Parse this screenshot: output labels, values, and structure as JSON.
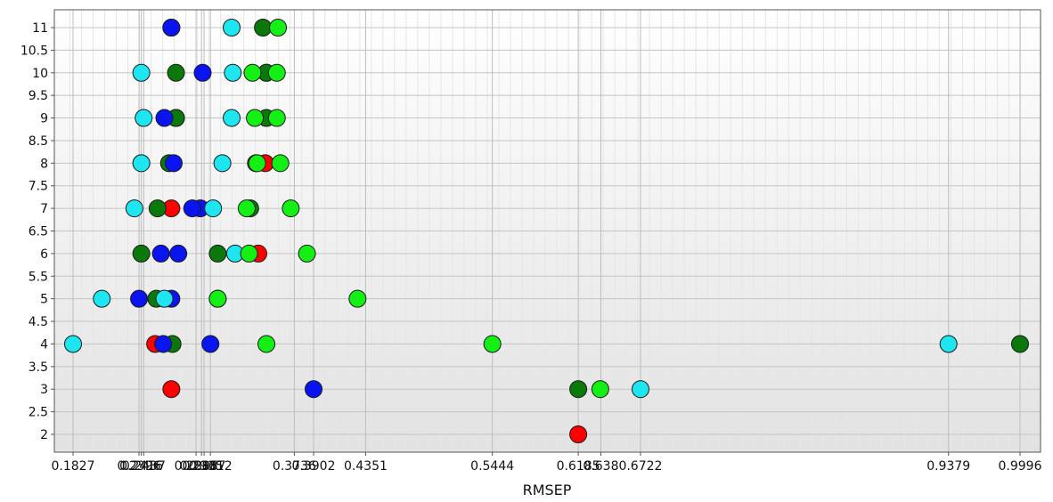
{
  "chart_data": {
    "type": "scatter",
    "title": "",
    "xlabel": "RMSEP",
    "ylabel": "",
    "grid": true,
    "legend": "none",
    "xlim": [
      0.17,
      1.0
    ],
    "ylim": [
      1.5,
      11.5
    ],
    "yticks": [
      "2",
      "2.5",
      "3",
      "3.5",
      "4",
      "4.5",
      "5",
      "5.5",
      "6",
      "6.5",
      "7",
      "7.5",
      "8",
      "8.5",
      "9",
      "9.5",
      "10",
      "10.5",
      "11"
    ],
    "xticks": [
      "0.1827",
      "0.2396",
      "0.2416",
      "0.2437",
      "0.2888",
      "0.2935",
      "0.2957",
      "0.3012",
      "0.3736",
      "0.3902",
      "0.4351",
      "0.5444",
      "0.6185",
      "0.638",
      "0.6722",
      "0.9379",
      "0.9996"
    ],
    "colors": {
      "red": "#ff0000",
      "dark_green": "#0a780a",
      "blue": "#0a14f0",
      "cyan": "#1ee6f0",
      "green": "#14f014"
    },
    "series": [
      {
        "color": "red",
        "points": [
          [
            0.2675,
            11
          ],
          [
            0.3495,
            10
          ],
          [
            0.2715,
            9
          ],
          [
            0.3485,
            8
          ],
          [
            0.2675,
            7
          ],
          [
            0.3425,
            6
          ],
          [
            0.3075,
            5
          ],
          [
            0.2535,
            4
          ],
          [
            0.2675,
            3
          ],
          [
            0.6185,
            2
          ]
        ]
      },
      {
        "color": "dark_green",
        "points": [
          [
            0.3465,
            11
          ],
          [
            0.2715,
            10
          ],
          [
            0.2715,
            9
          ],
          [
            0.2655,
            8
          ],
          [
            0.2556,
            7
          ],
          [
            0.2416,
            6
          ],
          [
            0.2545,
            5
          ],
          [
            0.2685,
            4
          ],
          [
            0.6185,
            3
          ],
          [
            0.9996,
            4
          ],
          [
            0.3075,
            6
          ],
          [
            0.3355,
            7
          ],
          [
            0.3405,
            8
          ],
          [
            0.3495,
            9
          ],
          [
            0.3495,
            10
          ]
        ]
      },
      {
        "color": "blue",
        "points": [
          [
            0.2675,
            11
          ],
          [
            0.2945,
            10
          ],
          [
            0.2615,
            9
          ],
          [
            0.2695,
            8
          ],
          [
            0.2925,
            7
          ],
          [
            0.2855,
            7
          ],
          [
            0.2585,
            6
          ],
          [
            0.2735,
            6
          ],
          [
            0.2396,
            5
          ],
          [
            0.2675,
            5
          ],
          [
            0.2605,
            4
          ],
          [
            0.3012,
            4
          ],
          [
            0.3902,
            3
          ]
        ]
      },
      {
        "color": "cyan",
        "points": [
          [
            0.3195,
            11
          ],
          [
            0.2416,
            10
          ],
          [
            0.3205,
            10
          ],
          [
            0.2436,
            9
          ],
          [
            0.3195,
            9
          ],
          [
            0.2416,
            8
          ],
          [
            0.3115,
            8
          ],
          [
            0.2356,
            7
          ],
          [
            0.3035,
            7
          ],
          [
            0.3225,
            6
          ],
          [
            0.2075,
            5
          ],
          [
            0.2615,
            5
          ],
          [
            0.1827,
            4
          ],
          [
            0.9379,
            4
          ],
          [
            0.6722,
            3
          ]
        ]
      },
      {
        "color": "green",
        "points": [
          [
            0.3595,
            11
          ],
          [
            0.3375,
            10
          ],
          [
            0.3585,
            10
          ],
          [
            0.3395,
            9
          ],
          [
            0.3585,
            9
          ],
          [
            0.3415,
            8
          ],
          [
            0.3615,
            8
          ],
          [
            0.3325,
            7
          ],
          [
            0.3705,
            7
          ],
          [
            0.3345,
            6
          ],
          [
            0.3845,
            6
          ],
          [
            0.3075,
            5
          ],
          [
            0.4281,
            5
          ],
          [
            0.3495,
            4
          ],
          [
            0.5444,
            4
          ],
          [
            0.6375,
            3
          ]
        ]
      }
    ]
  }
}
